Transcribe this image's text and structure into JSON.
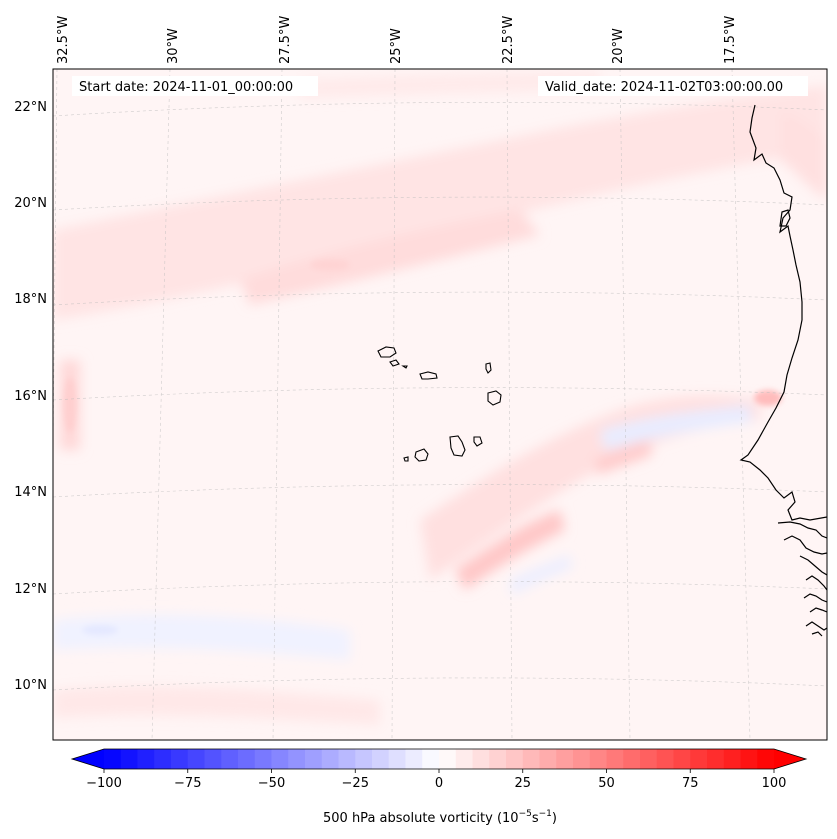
{
  "header": {
    "start_date": "Start date: 2024-11-01_00:00:00",
    "valid_date": "Valid_date: 2024-11-02T03:00:00.00"
  },
  "map": {
    "lon_labels": [
      "32.5°W",
      "30°W",
      "27.5°W",
      "25°W",
      "22.5°W",
      "20°W",
      "17.5°W"
    ],
    "lat_labels": [
      "22°N",
      "20°N",
      "18°N",
      "16°N",
      "14°N",
      "12°N",
      "10°N"
    ],
    "gridlines": true,
    "features": [
      "Cape Verde islands",
      "West African coastline"
    ]
  },
  "colorbar": {
    "min": -100,
    "max": 100,
    "ticks": [
      "−100",
      "−75",
      "−50",
      "−25",
      "0",
      "25",
      "50",
      "75",
      "100"
    ],
    "label": "500 hPa absolute vorticity (10",
    "label_exp1": "−5",
    "label_mid": "s",
    "label_exp2": "−1",
    "label_end": ")",
    "low_color": "#0000ff",
    "mid_color": "#ffffff",
    "high_color": "#ff0000",
    "extend": "both"
  }
}
